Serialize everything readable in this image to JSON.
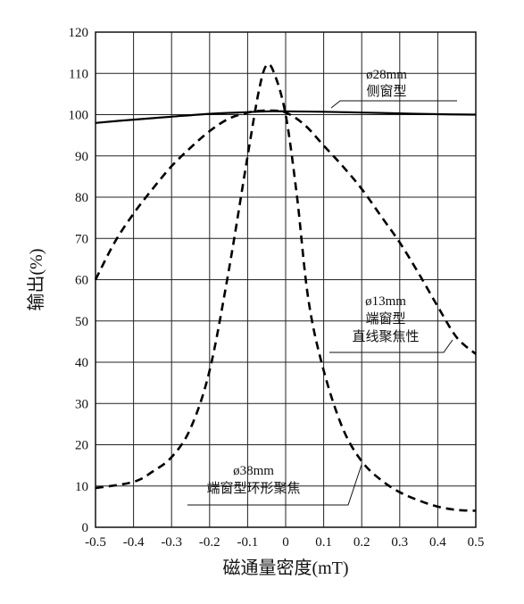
{
  "chart_data": {
    "type": "line",
    "xlabel": "磁通量密度(mT)",
    "ylabel": "输出(%)",
    "xlim": [
      -0.5,
      0.5
    ],
    "ylim": [
      0,
      120
    ],
    "x_ticks": [
      -0.5,
      -0.4,
      -0.3,
      -0.2,
      -0.1,
      0,
      0.1,
      0.2,
      0.3,
      0.4,
      0.5
    ],
    "x_tick_labels": [
      "-0.5",
      "-0.4",
      "-0.3",
      "-0.2",
      "-0.1",
      "0",
      "0.1",
      "0.2",
      "0.3",
      "0.4",
      "0.5"
    ],
    "y_ticks": [
      0,
      10,
      20,
      30,
      40,
      50,
      60,
      70,
      80,
      90,
      100,
      110,
      120
    ],
    "y_tick_labels": [
      "0",
      "10",
      "20",
      "30",
      "40",
      "50",
      "60",
      "70",
      "80",
      "90",
      "100",
      "110",
      "120"
    ],
    "grid": true,
    "series": [
      {
        "name": "ø28mm 侧窗型",
        "line_style": "solid",
        "x": [
          -0.5,
          -0.4,
          -0.3,
          -0.2,
          -0.1,
          -0.05,
          0,
          0.1,
          0.2,
          0.3,
          0.4,
          0.5
        ],
        "y": [
          98,
          98.8,
          99.5,
          100.2,
          100.6,
          100.8,
          100.8,
          100.7,
          100.5,
          100.3,
          100.1,
          100
        ]
      },
      {
        "name": "ø13mm 端窗型 直线聚焦性",
        "line_style": "dashed",
        "x": [
          -0.5,
          -0.45,
          -0.4,
          -0.35,
          -0.3,
          -0.25,
          -0.2,
          -0.15,
          -0.1,
          -0.05,
          0,
          0.05,
          0.1,
          0.15,
          0.2,
          0.25,
          0.3,
          0.35,
          0.4,
          0.45,
          0.5
        ],
        "y": [
          60,
          69,
          76,
          82,
          87.5,
          92,
          96,
          99,
          100.5,
          101,
          100.5,
          97.5,
          92.5,
          87.5,
          82,
          75.5,
          69,
          61.5,
          53.5,
          46,
          42
        ]
      },
      {
        "name": "ø38mm 端窗型环形聚焦",
        "line_style": "dashed",
        "x": [
          -0.5,
          -0.4,
          -0.35,
          -0.3,
          -0.25,
          -0.2,
          -0.15,
          -0.1,
          -0.07,
          -0.05,
          -0.03,
          0,
          0.03,
          0.06,
          0.1,
          0.15,
          0.2,
          0.25,
          0.3,
          0.35,
          0.4,
          0.45,
          0.5
        ],
        "y": [
          9.5,
          11,
          13.5,
          17,
          24,
          38,
          62,
          90,
          106,
          112,
          110,
          100,
          80,
          55,
          38,
          24,
          16,
          11.5,
          8.5,
          6.5,
          5,
          4.2,
          4
        ]
      }
    ],
    "annotations": [
      {
        "lines": [
          "ø28mm",
          "侧窗型"
        ],
        "series": 0
      },
      {
        "lines": [
          "ø13mm",
          "端窗型",
          "直线聚焦性"
        ],
        "series": 1
      },
      {
        "lines": [
          "ø38mm",
          "端窗型环形聚焦"
        ],
        "series": 2
      }
    ]
  }
}
